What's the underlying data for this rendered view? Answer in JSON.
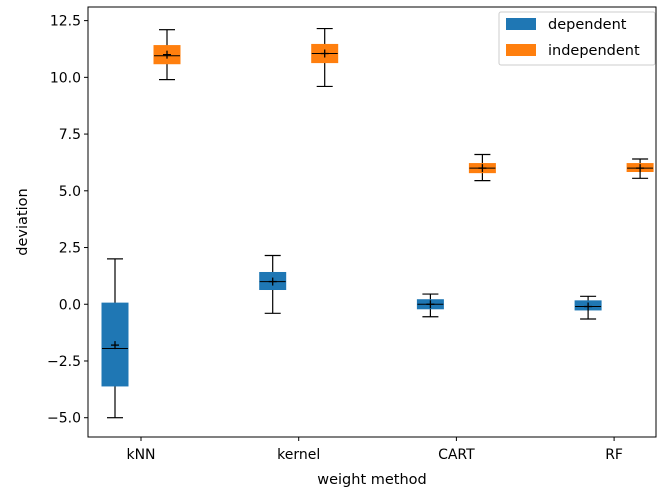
{
  "chart_data": {
    "type": "box",
    "xlabel": "weight method",
    "ylabel": "deviation",
    "categories": [
      "kNN",
      "kernel",
      "CART",
      "RF"
    ],
    "ylim": [
      -5.85,
      13.1
    ],
    "yticks": [
      -5.0,
      -2.5,
      0.0,
      2.5,
      5.0,
      7.5,
      10.0,
      12.5
    ],
    "ytick_labels": [
      "−5.0",
      "−2.5",
      "0.0",
      "2.5",
      "5.0",
      "7.5",
      "10.0",
      "12.5"
    ],
    "grid": false,
    "legend_position": "top-right",
    "mean_marker": "+",
    "series": [
      {
        "name": "dependent",
        "color": "#1f77b4",
        "boxes": [
          {
            "whislo": -5.0,
            "q1": -3.6,
            "median": -1.95,
            "q3": 0.05,
            "whishi": 2.0,
            "mean": -1.8
          },
          {
            "whislo": -0.4,
            "q1": 0.65,
            "median": 1.0,
            "q3": 1.4,
            "whishi": 2.15,
            "mean": 1.0
          },
          {
            "whislo": -0.55,
            "q1": -0.2,
            "median": 0.0,
            "q3": 0.2,
            "whishi": 0.45,
            "mean": 0.0
          },
          {
            "whislo": -0.65,
            "q1": -0.25,
            "median": -0.1,
            "q3": 0.15,
            "whishi": 0.35,
            "mean": -0.1
          }
        ]
      },
      {
        "name": "independent",
        "color": "#ff7f0e",
        "boxes": [
          {
            "whislo": 9.9,
            "q1": 10.6,
            "median": 10.95,
            "q3": 11.4,
            "whishi": 12.1,
            "mean": 11.0
          },
          {
            "whislo": 9.6,
            "q1": 10.65,
            "median": 11.05,
            "q3": 11.45,
            "whishi": 12.15,
            "mean": 11.05
          },
          {
            "whislo": 5.45,
            "q1": 5.8,
            "median": 6.0,
            "q3": 6.2,
            "whishi": 6.6,
            "mean": 6.0
          },
          {
            "whislo": 5.55,
            "q1": 5.85,
            "median": 6.0,
            "q3": 6.2,
            "whishi": 6.4,
            "mean": 6.0
          }
        ]
      }
    ]
  }
}
